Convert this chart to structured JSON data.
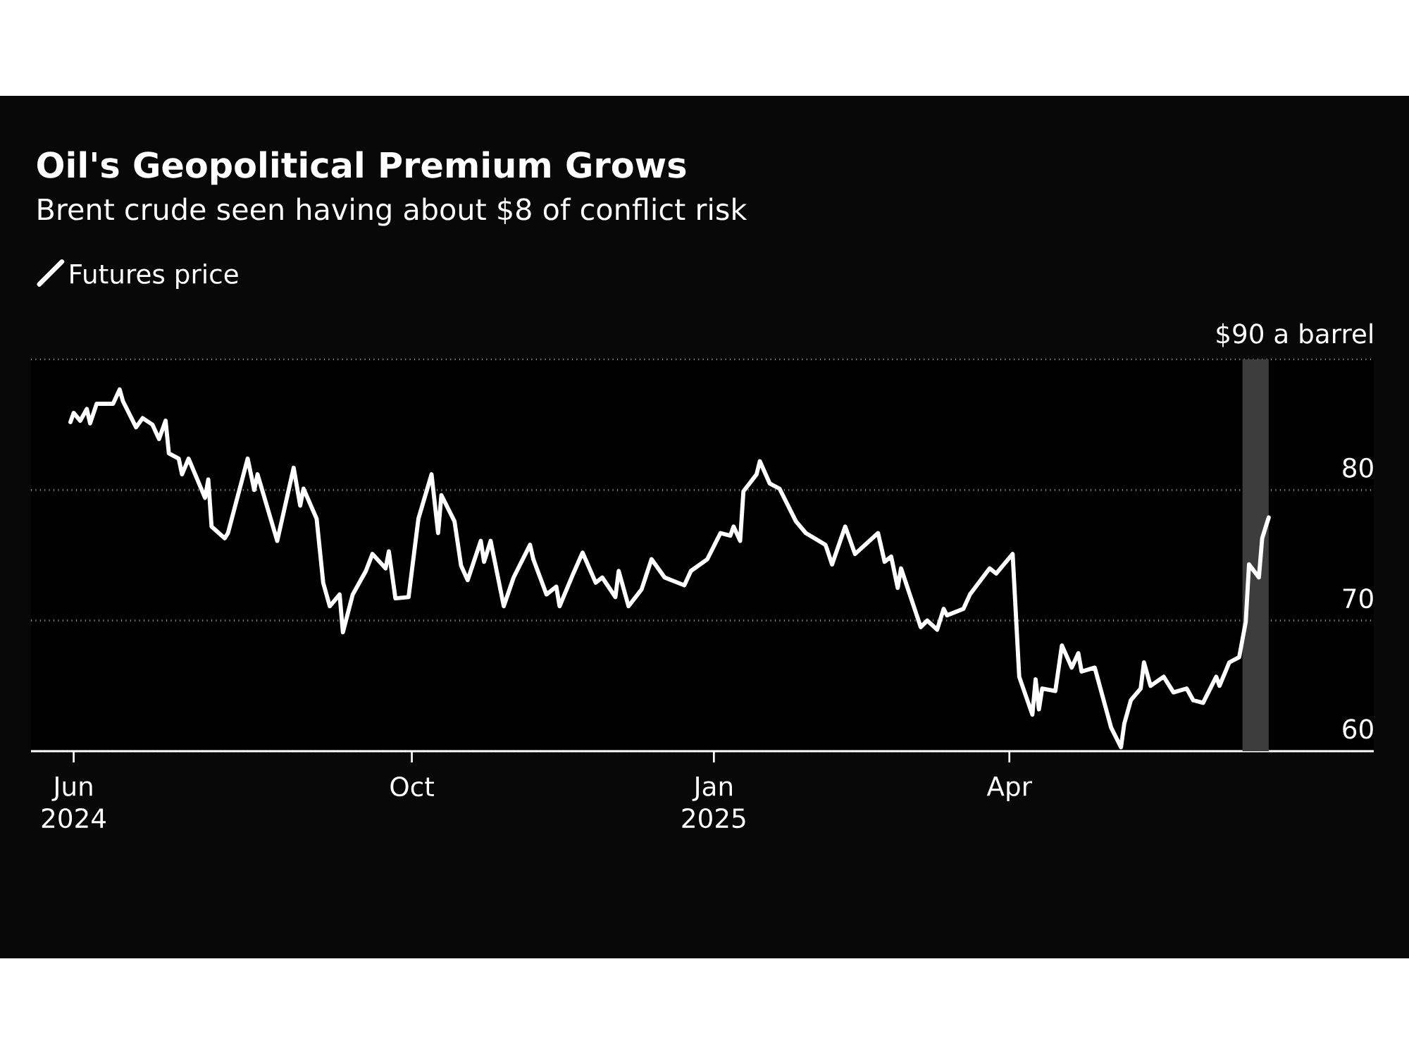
{
  "chart_data": {
    "type": "line",
    "title": "Oil's Geopolitical Premium Grows",
    "subtitle": "Brent crude seen having about $8 of conflict risk",
    "x": [
      "2024-06-19",
      "2024-06-20",
      "2024-06-22",
      "2024-06-24",
      "2024-06-25",
      "2024-06-27",
      "2024-07-02",
      "2024-07-04",
      "2024-07-05",
      "2024-07-09",
      "2024-07-11",
      "2024-07-14",
      "2024-07-16",
      "2024-07-18",
      "2024-07-19",
      "2024-07-22",
      "2024-07-23",
      "2024-07-25",
      "2024-07-30",
      "2024-07-31",
      "2024-08-01",
      "2024-08-05",
      "2024-08-06",
      "2024-08-12",
      "2024-08-14",
      "2024-08-15",
      "2024-08-21",
      "2024-08-26",
      "2024-08-28",
      "2024-08-29",
      "2024-09-02",
      "2024-09-04",
      "2024-09-06",
      "2024-09-09",
      "2024-09-10",
      "2024-09-13",
      "2024-09-17",
      "2024-09-19",
      "2024-09-23",
      "2024-09-24",
      "2024-09-26",
      "2024-09-30",
      "2024-10-03",
      "2024-10-07",
      "2024-10-09",
      "2024-10-10",
      "2024-10-14",
      "2024-10-16",
      "2024-10-18",
      "2024-10-22",
      "2024-10-23",
      "2024-10-25",
      "2024-10-29",
      "2024-11-01",
      "2024-11-06",
      "2024-11-07",
      "2024-11-11",
      "2024-11-14",
      "2024-11-15",
      "2024-11-19",
      "2024-11-22",
      "2024-11-26",
      "2024-11-28",
      "2024-12-02",
      "2024-12-03",
      "2024-12-06",
      "2024-12-10",
      "2024-12-13",
      "2024-12-17",
      "2024-12-23",
      "2024-12-25",
      "2024-12-30",
      "2025-01-03",
      "2025-01-06",
      "2025-01-07",
      "2025-01-09",
      "2025-01-10",
      "2025-01-14",
      "2025-01-15",
      "2025-01-18",
      "2025-01-21",
      "2025-01-26",
      "2025-01-29",
      "2025-02-04",
      "2025-02-06",
      "2025-02-10",
      "2025-02-13",
      "2025-02-20",
      "2025-02-22",
      "2025-02-24",
      "2025-02-26",
      "2025-02-27",
      "2025-03-05",
      "2025-03-07",
      "2025-03-10",
      "2025-03-12",
      "2025-03-13",
      "2025-03-18",
      "2025-03-20",
      "2025-03-26",
      "2025-03-28",
      "2025-04-02",
      "2025-04-04",
      "2025-04-08",
      "2025-04-09",
      "2025-04-10",
      "2025-04-11",
      "2025-04-15",
      "2025-04-17",
      "2025-04-20",
      "2025-04-22",
      "2025-04-23",
      "2025-04-27",
      "2025-05-02",
      "2025-05-05",
      "2025-05-06",
      "2025-05-08",
      "2025-05-11",
      "2025-05-12",
      "2025-05-14",
      "2025-05-18",
      "2025-05-21",
      "2025-05-25",
      "2025-05-27",
      "2025-05-30",
      "2025-06-03",
      "2025-06-04",
      "2025-06-07",
      "2025-06-10",
      "2025-06-12",
      "2025-06-13",
      "2025-06-16",
      "2025-06-17",
      "2025-06-19"
    ],
    "series": [
      {
        "name": "Futures price",
        "color": "#ffffff",
        "values": [
          85.2,
          85.9,
          85.3,
          86.2,
          85.1,
          86.6,
          86.6,
          87.7,
          86.8,
          84.8,
          85.5,
          85.0,
          83.9,
          85.3,
          82.8,
          82.4,
          81.2,
          82.4,
          79.4,
          80.8,
          77.2,
          76.3,
          76.7,
          82.4,
          80.0,
          81.2,
          76.1,
          81.7,
          78.8,
          80.1,
          77.8,
          72.9,
          71.1,
          72.0,
          69.1,
          72.0,
          73.8,
          75.1,
          74.0,
          75.3,
          71.7,
          71.8,
          77.8,
          81.2,
          76.7,
          79.6,
          77.6,
          74.2,
          73.1,
          76.1,
          74.5,
          76.1,
          71.1,
          73.3,
          75.8,
          74.7,
          72.0,
          72.6,
          71.1,
          73.5,
          75.2,
          72.9,
          73.3,
          71.8,
          73.8,
          71.1,
          72.4,
          74.7,
          73.3,
          72.7,
          73.8,
          74.7,
          76.7,
          76.5,
          77.2,
          76.1,
          79.9,
          81.2,
          82.2,
          80.5,
          80.1,
          77.6,
          76.7,
          75.8,
          74.3,
          77.2,
          75.1,
          76.7,
          74.5,
          74.9,
          72.5,
          74.0,
          69.5,
          70.0,
          69.3,
          70.9,
          70.4,
          70.9,
          72.0,
          74.0,
          73.6,
          75.1,
          65.7,
          62.8,
          65.5,
          63.2,
          64.8,
          64.6,
          68.1,
          66.4,
          67.5,
          66.1,
          66.4,
          61.8,
          60.3,
          62.1,
          63.9,
          64.8,
          66.8,
          65.0,
          65.7,
          64.5,
          64.8,
          63.9,
          63.7,
          65.7,
          65.0,
          66.8,
          67.2,
          69.9,
          74.3,
          73.3,
          76.3,
          77.9
        ]
      }
    ],
    "xlim": [
      "2024-06-07",
      "2025-07-21"
    ],
    "xticks": [
      {
        "value": "2024-06-20",
        "label": "Jun 2024"
      },
      {
        "value": "2024-10-01",
        "label": "Oct"
      },
      {
        "value": "2025-01-01",
        "label": "Jan 2025"
      },
      {
        "value": "2025-04-01",
        "label": "Apr"
      }
    ],
    "ylim": [
      60,
      90
    ],
    "yticks": [
      60,
      70,
      80,
      {
        "value": 90,
        "label": "$90 a barrel"
      }
    ],
    "grid": "y",
    "legend": "top left",
    "bands": [
      {
        "axis": "x",
        "from": "2025-06-11",
        "to": "2025-06-19",
        "color": "#3d3d3d"
      }
    ]
  }
}
